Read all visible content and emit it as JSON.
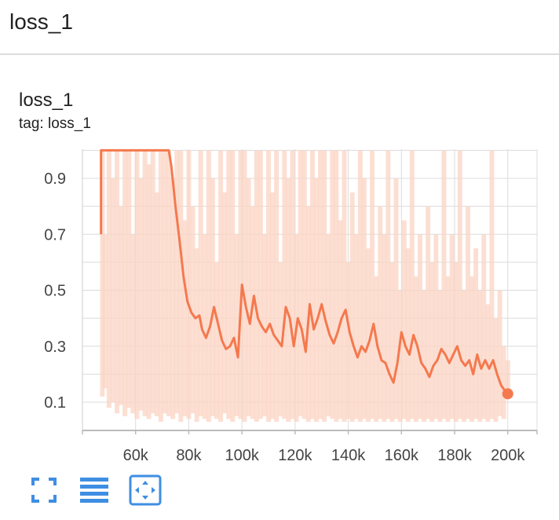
{
  "header": {
    "title": "loss_1"
  },
  "card": {
    "title": "loss_1",
    "tag": "tag: loss_1"
  },
  "toolbar": {
    "buttons": [
      {
        "icon": "fullscreen-icon"
      },
      {
        "icon": "toggle-log-scale-icon"
      },
      {
        "icon": "fit-domain-icon"
      }
    ]
  },
  "colors": {
    "smoothed": "#f4794e",
    "raw": "#fbd4c4",
    "grid": "#dcdcdc",
    "icon": "#3e8ee3"
  },
  "chart_data": {
    "type": "line",
    "title": "",
    "xlabel": "",
    "ylabel": "",
    "xlim": [
      40000,
      211000
    ],
    "ylim": [
      0.0,
      1.0
    ],
    "x_ticks": [
      60000,
      80000,
      100000,
      120000,
      140000,
      160000,
      180000,
      200000
    ],
    "x_tick_labels": [
      "60k",
      "80k",
      "100k",
      "120k",
      "140k",
      "160k",
      "180k",
      "200k"
    ],
    "y_ticks": [
      0.1,
      0.3,
      0.5,
      0.7,
      0.9
    ],
    "y_tick_labels": [
      "0.1",
      "0.3",
      "0.5",
      "0.7",
      "0.9"
    ],
    "grid": true,
    "series": [
      {
        "role": "smoothed",
        "x": [
          47000,
          47000,
          72500,
          73500,
          75000,
          76500,
          78000,
          79500,
          81000,
          82500,
          84000,
          85000,
          86500,
          88000,
          89500,
          91000,
          92500,
          94000,
          95500,
          97000,
          98500,
          100000,
          101500,
          103000,
          104500,
          106000,
          107500,
          109000,
          110500,
          112000,
          113500,
          115000,
          116500,
          118000,
          119500,
          121000,
          122500,
          124000,
          125500,
          127000,
          128500,
          130000,
          131500,
          133000,
          134500,
          136000,
          137500,
          139000,
          140500,
          142000,
          143500,
          145000,
          146500,
          148000,
          149500,
          151000,
          152500,
          154000,
          155500,
          157000,
          158500,
          160000,
          161500,
          163000,
          164500,
          166000,
          167500,
          169000,
          170500,
          172000,
          173500,
          175000,
          176500,
          178000,
          179500,
          181000,
          182500,
          184000,
          185500,
          187000,
          188500,
          190000,
          191500,
          193000,
          194500,
          196000,
          197500,
          199000,
          200000
        ],
        "y": [
          0.7,
          1.0,
          1.0,
          0.94,
          0.8,
          0.68,
          0.55,
          0.46,
          0.42,
          0.4,
          0.41,
          0.36,
          0.33,
          0.37,
          0.44,
          0.38,
          0.32,
          0.29,
          0.3,
          0.33,
          0.26,
          0.52,
          0.44,
          0.38,
          0.48,
          0.4,
          0.37,
          0.35,
          0.38,
          0.34,
          0.32,
          0.3,
          0.44,
          0.4,
          0.3,
          0.4,
          0.36,
          0.28,
          0.45,
          0.36,
          0.4,
          0.45,
          0.39,
          0.34,
          0.31,
          0.35,
          0.4,
          0.43,
          0.35,
          0.3,
          0.26,
          0.3,
          0.28,
          0.32,
          0.38,
          0.3,
          0.25,
          0.24,
          0.2,
          0.17,
          0.24,
          0.35,
          0.3,
          0.27,
          0.34,
          0.3,
          0.24,
          0.22,
          0.19,
          0.23,
          0.25,
          0.29,
          0.27,
          0.24,
          0.27,
          0.3,
          0.25,
          0.23,
          0.25,
          0.2,
          0.27,
          0.22,
          0.25,
          0.22,
          0.25,
          0.2,
          0.16,
          0.14,
          0.13
        ]
      },
      {
        "role": "raw",
        "x": [
          47500,
          48500,
          50000,
          51500,
          53000,
          54500,
          56000,
          57500,
          59000,
          60500,
          62000,
          63500,
          65000,
          66500,
          68000,
          69500,
          71000,
          72500,
          74000,
          75500,
          77000,
          78500,
          80000,
          81500,
          83000,
          84500,
          86000,
          87500,
          89000,
          90500,
          92000,
          93500,
          95000,
          96500,
          98000,
          99500,
          101000,
          102500,
          104000,
          105500,
          107000,
          108500,
          110000,
          111500,
          113000,
          114500,
          116000,
          117500,
          119000,
          120500,
          122000,
          123500,
          125000,
          126500,
          128000,
          129500,
          131000,
          132500,
          134000,
          135500,
          137000,
          138500,
          140000,
          141500,
          143000,
          144500,
          146000,
          147500,
          149000,
          150500,
          152000,
          153500,
          155000,
          156500,
          158000,
          159500,
          161000,
          162500,
          164000,
          165500,
          167000,
          168500,
          170000,
          171500,
          173000,
          174500,
          176000,
          177500,
          179000,
          180500,
          182000,
          183500,
          185000,
          186500,
          188000,
          189500,
          191000,
          192500,
          194000,
          195500,
          197000,
          198500,
          200000
        ],
        "y_high": [
          1.0,
          0.7,
          1.0,
          0.9,
          1.0,
          0.8,
          1.0,
          1.0,
          0.7,
          1.0,
          0.9,
          1.0,
          0.95,
          1.0,
          0.85,
          1.0,
          1.0,
          1.0,
          0.9,
          1.0,
          1.0,
          0.75,
          1.0,
          0.8,
          0.65,
          1.0,
          0.7,
          1.0,
          0.9,
          0.6,
          1.0,
          0.85,
          1.0,
          1.0,
          0.7,
          1.0,
          1.0,
          0.9,
          0.8,
          1.0,
          1.0,
          0.7,
          1.0,
          0.85,
          1.0,
          0.6,
          1.0,
          0.9,
          1.0,
          0.7,
          1.0,
          1.0,
          0.8,
          1.0,
          0.9,
          1.0,
          1.0,
          0.7,
          1.0,
          1.0,
          0.75,
          1.0,
          0.6,
          0.85,
          0.7,
          1.0,
          0.9,
          0.65,
          1.0,
          0.55,
          0.8,
          0.7,
          1.0,
          0.6,
          0.9,
          0.5,
          0.75,
          0.65,
          1.0,
          0.55,
          0.7,
          0.5,
          0.8,
          0.6,
          0.7,
          0.5,
          1.0,
          0.55,
          0.7,
          0.6,
          1.0,
          0.5,
          0.8,
          0.55,
          0.65,
          0.5,
          0.7,
          0.45,
          1.0,
          0.4,
          0.5,
          0.3,
          0.25
        ],
        "y_low": [
          0.12,
          0.15,
          0.08,
          0.1,
          0.06,
          0.09,
          0.05,
          0.08,
          0.06,
          0.04,
          0.07,
          0.05,
          0.04,
          0.06,
          0.05,
          0.03,
          0.06,
          0.05,
          0.04,
          0.06,
          0.03,
          0.05,
          0.04,
          0.06,
          0.03,
          0.05,
          0.04,
          0.03,
          0.05,
          0.04,
          0.03,
          0.06,
          0.04,
          0.03,
          0.05,
          0.04,
          0.03,
          0.05,
          0.04,
          0.03,
          0.04,
          0.05,
          0.03,
          0.04,
          0.03,
          0.05,
          0.04,
          0.03,
          0.04,
          0.03,
          0.05,
          0.04,
          0.03,
          0.04,
          0.03,
          0.04,
          0.03,
          0.05,
          0.04,
          0.03,
          0.04,
          0.03,
          0.04,
          0.03,
          0.04,
          0.03,
          0.04,
          0.03,
          0.04,
          0.03,
          0.04,
          0.03,
          0.04,
          0.03,
          0.04,
          0.03,
          0.04,
          0.03,
          0.04,
          0.03,
          0.04,
          0.03,
          0.04,
          0.03,
          0.04,
          0.03,
          0.04,
          0.03,
          0.04,
          0.03,
          0.04,
          0.03,
          0.04,
          0.03,
          0.04,
          0.03,
          0.04,
          0.03,
          0.04,
          0.03,
          0.05,
          0.04,
          0.12
        ]
      }
    ],
    "last_point": {
      "x": 200000,
      "y": 0.13
    }
  }
}
